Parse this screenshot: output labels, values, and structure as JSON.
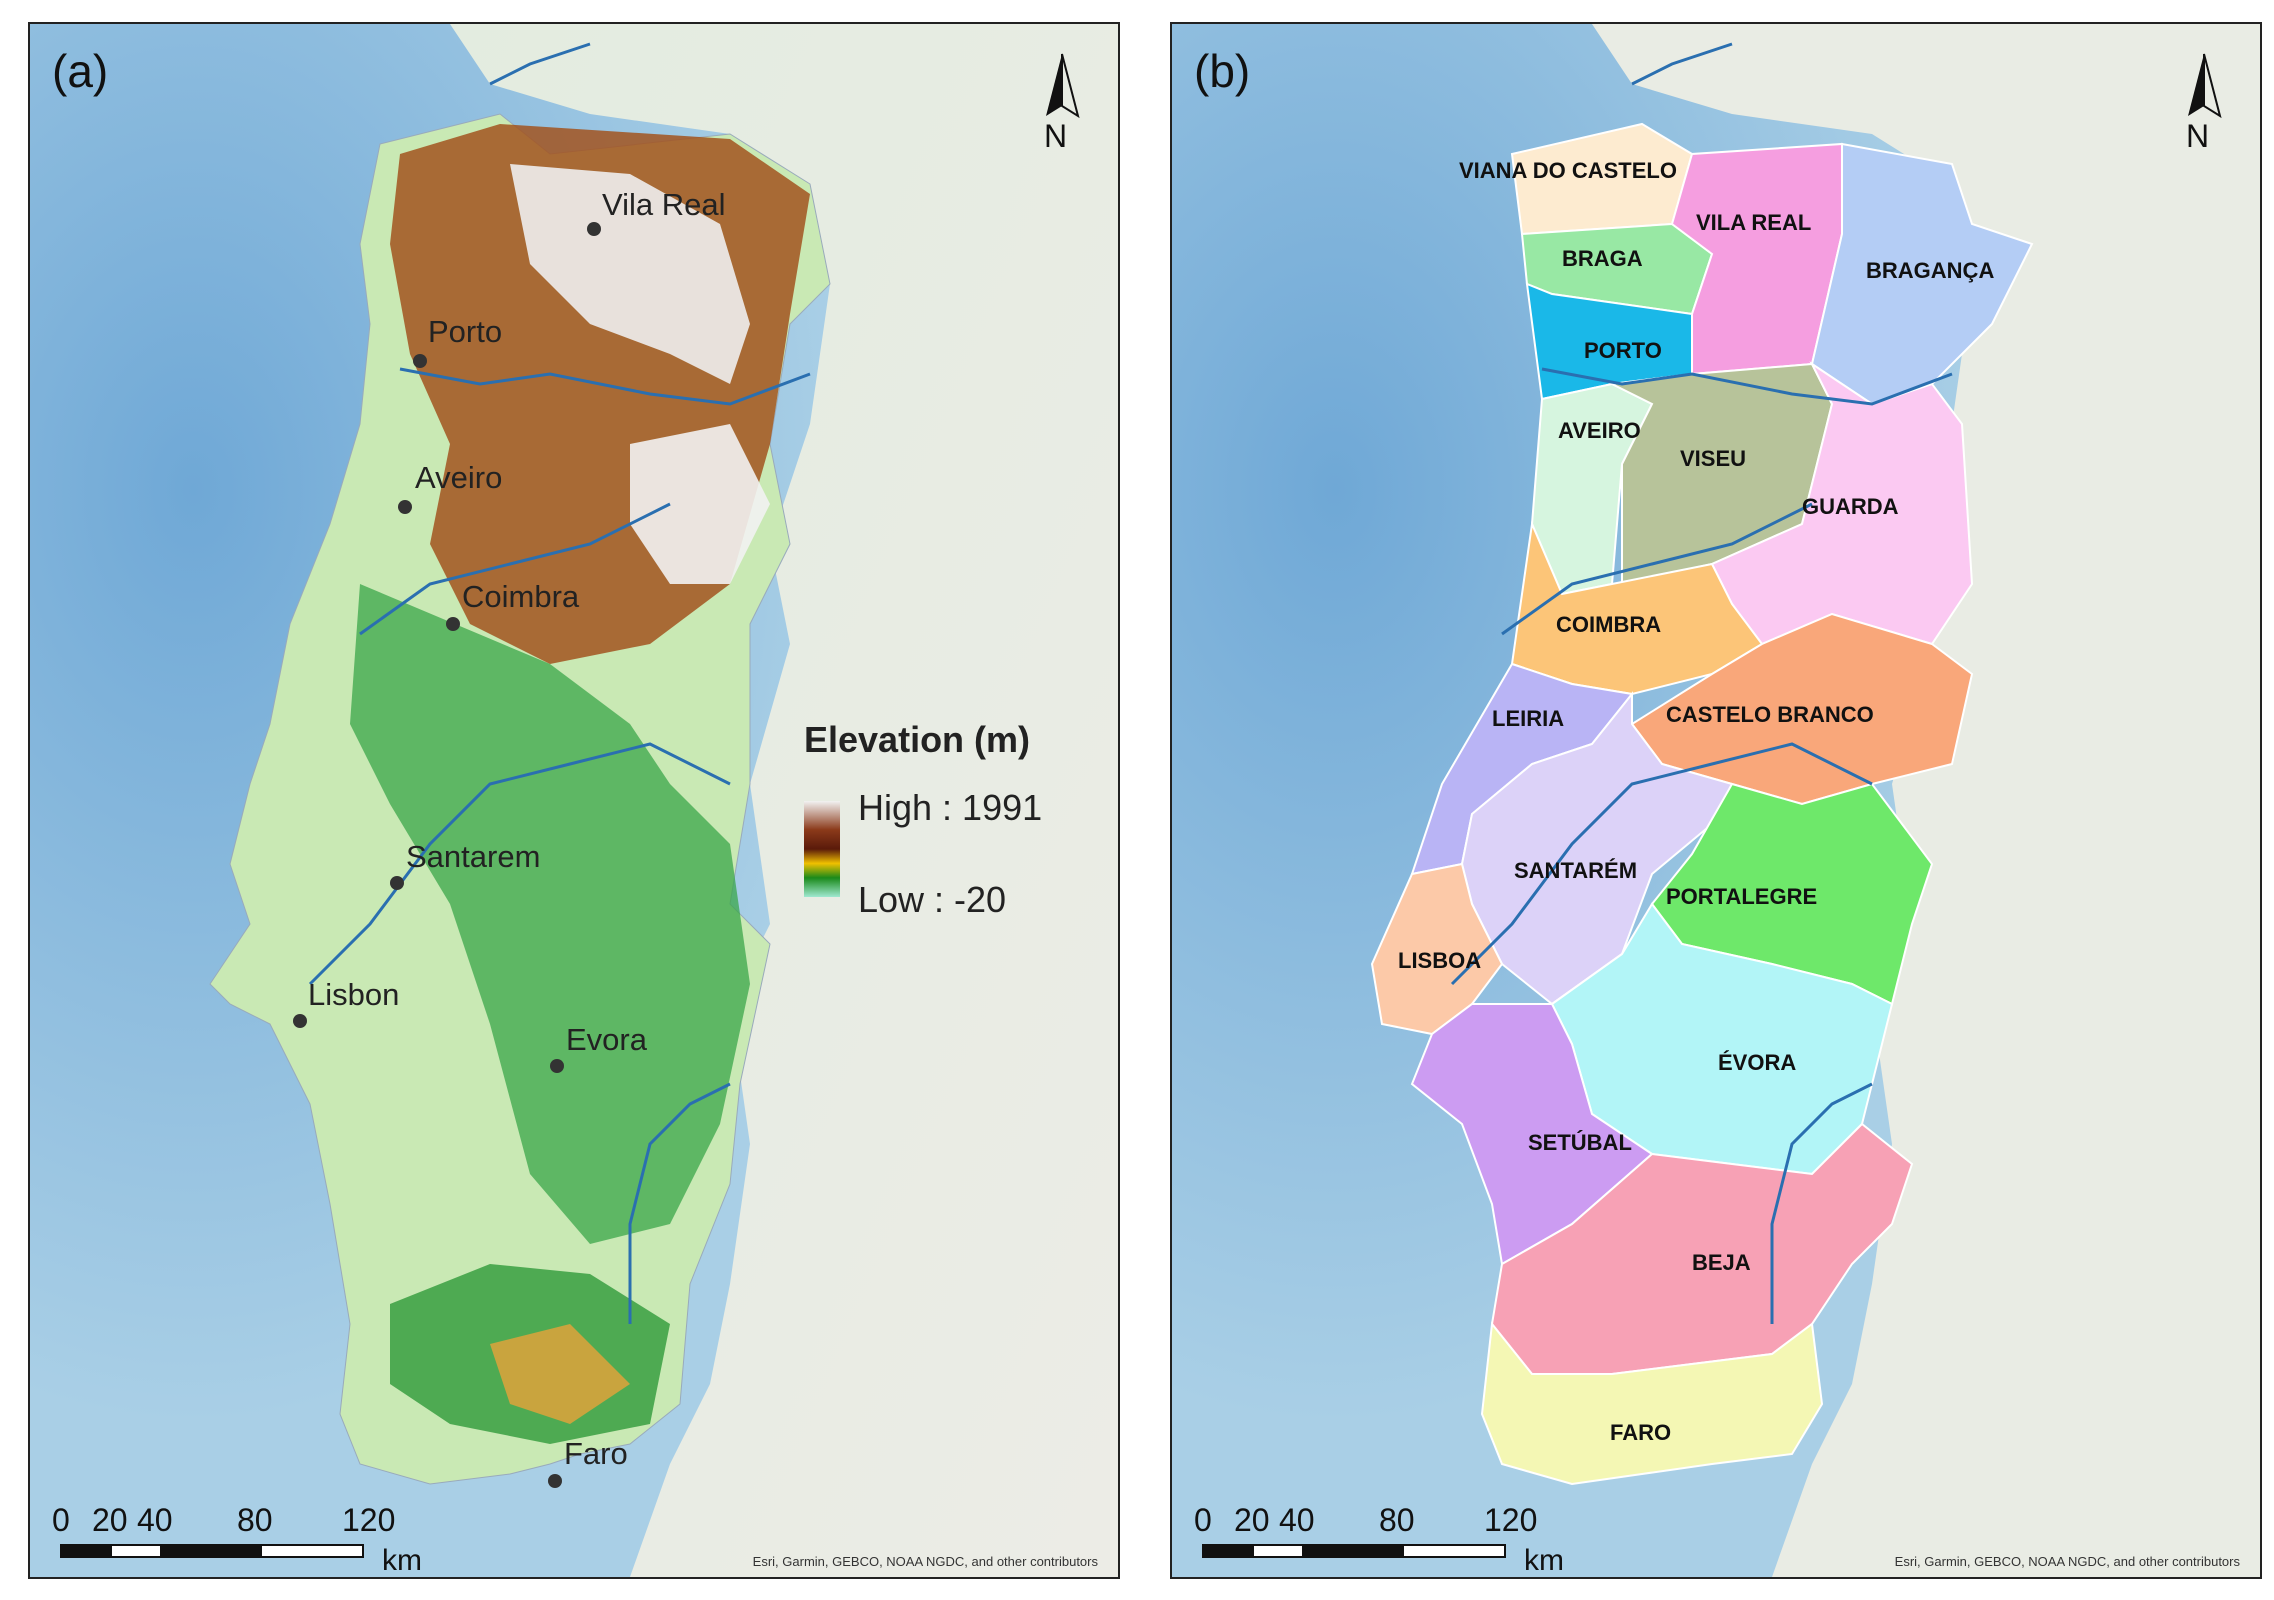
{
  "panels": {
    "a": {
      "label": "(a)",
      "north": "N",
      "legend": {
        "title": "Elevation (m)",
        "high": "High : 1991",
        "low": "Low : -20"
      },
      "cities": [
        "Vila Real",
        "Porto",
        "Aveiro",
        "Coimbra",
        "Santarem",
        "Lisbon",
        "Evora",
        "Faro"
      ],
      "scale": {
        "ticks": [
          "0",
          "20",
          "40",
          "80",
          "120"
        ],
        "unit": "km"
      },
      "attribution": "Esri, Garmin, GEBCO, NOAA NGDC, and other contributors"
    },
    "b": {
      "label": "(b)",
      "north": "N",
      "districts": [
        "VIANA DO CASTELO",
        "BRAGA",
        "VILA REAL",
        "BRAGANÇA",
        "PORTO",
        "AVEIRO",
        "VISEU",
        "GUARDA",
        "COIMBRA",
        "LEIRIA",
        "CASTELO BRANCO",
        "SANTARÉM",
        "PORTALEGRE",
        "LISBOA",
        "ÉVORA",
        "SETÚBAL",
        "BEJA",
        "FARO"
      ],
      "scale": {
        "ticks": [
          "0",
          "20",
          "40",
          "80",
          "120"
        ],
        "unit": "km"
      },
      "attribution": "Esri, Garmin, GEBCO, NOAA NGDC, and other contributors"
    }
  },
  "colors": {
    "sea": "#a9cfe6",
    "deep_sea": "#7fb3d9",
    "land_basemap": "#e9ece4",
    "river": "#2a6fb0",
    "elev_low": "#9fe0c0",
    "elev_mid": "#2e9a3e",
    "elev_high": "#8b3a1a",
    "elev_top": "#f2f2f2",
    "districts": {
      "viana": "#fdebd0",
      "braga": "#98e8a4",
      "vilareal": "#f59ee0",
      "braganca": "#b4cdf5",
      "porto": "#1ab8e8",
      "aveiro": "#d6f5df",
      "viseu": "#b7c39a",
      "guarda": "#fbc9f2",
      "coimbra": "#fcc578",
      "leiria": "#b9b4f5",
      "castelo": "#f9a77a",
      "santarem": "#dcd2f8",
      "portalegre": "#6ee86a",
      "lisboa": "#fcc9a8",
      "evora": "#b2f5f7",
      "setubal": "#cc9cf2",
      "beja": "#f7a1b5",
      "faro": "#f4f7b4"
    }
  }
}
